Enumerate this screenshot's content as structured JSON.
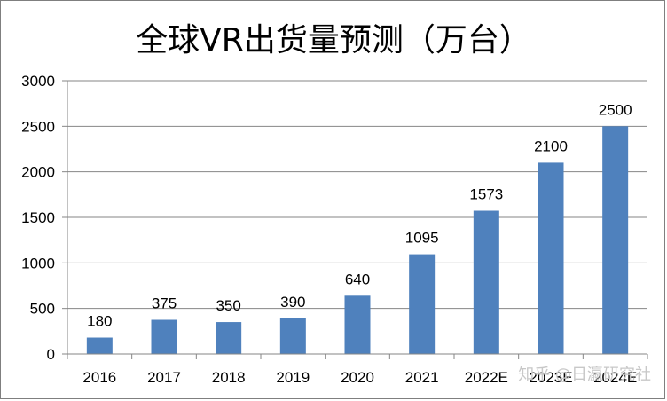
{
  "chart_data": {
    "type": "bar",
    "title": "全球VR出货量预测（万台）",
    "categories": [
      "2016",
      "2017",
      "2018",
      "2019",
      "2020",
      "2021",
      "2022E",
      "2023E",
      "2024E"
    ],
    "values": [
      180,
      375,
      350,
      390,
      640,
      1095,
      1573,
      2100,
      2500
    ],
    "data_labels": [
      "180",
      "375",
      "350",
      "390",
      "640",
      "1095",
      "1573",
      "2100",
      "2500"
    ],
    "ylim": [
      0,
      3000
    ],
    "yticks": [
      "0",
      "500",
      "1000",
      "1500",
      "2000",
      "2500",
      "3000"
    ],
    "xlabel": "",
    "ylabel": "",
    "grid": true,
    "bar_color": "#4f81bd",
    "grid_color": "#868686"
  },
  "watermark": "知乎 @日瀛研究社"
}
